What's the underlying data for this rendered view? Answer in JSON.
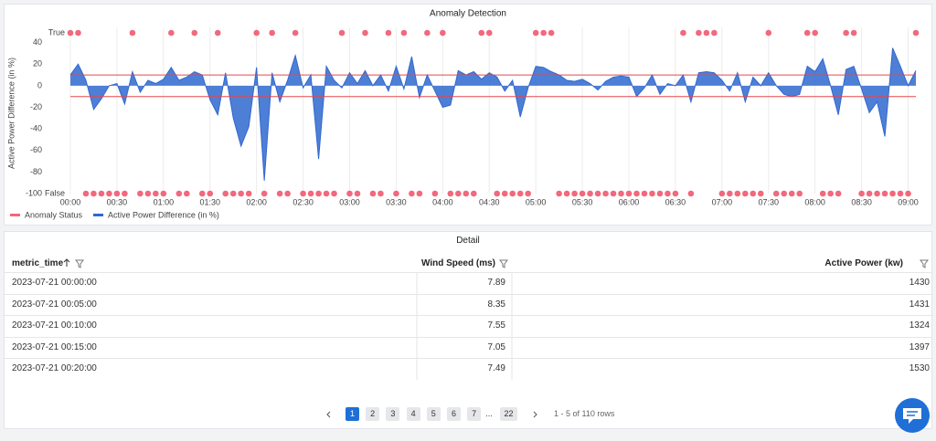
{
  "chart_data": {
    "type": "area",
    "title": "Anomaly Detection",
    "ylabel": "Active Power Difference (in %)",
    "x": [
      0,
      5,
      10,
      15,
      20,
      25,
      30,
      35,
      40,
      45,
      50,
      55,
      60,
      65,
      70,
      75,
      80,
      85,
      90,
      95,
      100,
      105,
      110,
      115,
      120,
      125,
      130,
      135,
      140,
      145,
      150,
      155,
      160,
      165,
      170,
      175,
      180,
      185,
      190,
      195,
      200,
      205,
      210,
      215,
      220,
      225,
      230,
      235,
      240,
      245,
      250,
      255,
      260,
      265,
      270,
      275,
      280,
      285,
      290,
      295,
      300,
      305,
      310,
      315,
      320,
      325,
      330,
      335,
      340,
      345,
      350,
      355,
      360,
      365,
      370,
      375,
      380,
      385,
      390,
      395,
      400,
      405,
      410,
      415,
      420,
      425,
      430,
      435,
      440,
      445,
      450,
      455,
      460,
      465,
      470,
      475,
      480,
      485,
      490,
      495,
      500,
      505,
      510,
      515,
      520,
      525,
      530,
      535,
      540,
      545
    ],
    "xlim": [
      0,
      545
    ],
    "xticks": [
      {
        "value": 0,
        "label": "00:00"
      },
      {
        "value": 30,
        "label": "00:30"
      },
      {
        "value": 60,
        "label": "01:00"
      },
      {
        "value": 90,
        "label": "01:30"
      },
      {
        "value": 120,
        "label": "02:00"
      },
      {
        "value": 150,
        "label": "02:30"
      },
      {
        "value": 180,
        "label": "03:00"
      },
      {
        "value": 210,
        "label": "03:30"
      },
      {
        "value": 240,
        "label": "04:00"
      },
      {
        "value": 270,
        "label": "04:30"
      },
      {
        "value": 300,
        "label": "05:00"
      },
      {
        "value": 330,
        "label": "05:30"
      },
      {
        "value": 360,
        "label": "06:00"
      },
      {
        "value": 390,
        "label": "06:30"
      },
      {
        "value": 420,
        "label": "07:00"
      },
      {
        "value": 450,
        "label": "07:30"
      },
      {
        "value": 480,
        "label": "08:00"
      },
      {
        "value": 510,
        "label": "08:30"
      },
      {
        "value": 540,
        "label": "09:00"
      }
    ],
    "ylim": [
      -100,
      49
    ],
    "yticks": [
      -100,
      -80,
      -60,
      -40,
      -20,
      0,
      20,
      40
    ],
    "y2lim": [
      0,
      1
    ],
    "y2ticks": [
      {
        "value": 0,
        "label": "False"
      },
      {
        "value": 1,
        "label": "True"
      }
    ],
    "grid": true,
    "thresholds": [
      10,
      -10
    ],
    "threshold_color": "#e5474f",
    "series": [
      {
        "name": "Anomaly Status",
        "type": "scatter",
        "axis": "y2",
        "color": "#f2687c",
        "values": [
          1,
          1,
          0,
          0,
          0,
          0,
          0,
          0,
          1,
          0,
          0,
          0,
          0,
          1,
          0,
          0,
          1,
          0,
          0,
          1,
          0,
          0,
          0,
          0,
          1,
          0,
          1,
          0,
          0,
          1,
          0,
          0,
          0,
          0,
          0,
          1,
          0,
          0,
          1,
          0,
          0,
          1,
          0,
          1,
          0,
          0,
          1,
          0,
          1,
          0,
          0,
          0,
          0,
          1,
          1,
          0,
          0,
          0,
          0,
          0,
          1,
          1,
          1,
          0,
          0,
          0,
          0,
          0,
          0,
          0,
          0,
          0,
          0,
          0,
          0,
          0,
          0,
          0,
          0,
          1,
          0,
          1,
          1,
          1,
          0,
          0,
          0,
          0,
          0,
          0,
          1,
          0,
          0,
          0,
          0,
          1,
          1,
          0,
          0,
          0,
          1,
          1,
          0,
          0,
          0,
          0,
          0,
          0,
          0,
          1
        ]
      },
      {
        "name": "Active Power Difference (in %)",
        "color": "#2f68cf",
        "values": [
          10,
          20,
          5,
          -22,
          -12,
          0,
          2,
          -17,
          13,
          -6,
          5,
          2,
          6,
          17,
          5,
          8,
          13,
          10,
          -13,
          -27,
          12,
          -30,
          -56,
          -38,
          17,
          -88,
          12,
          -15,
          5,
          28,
          -2,
          10,
          -68,
          18,
          5,
          -2,
          12,
          2,
          14,
          0,
          10,
          -5,
          18,
          -3,
          27,
          -11,
          10,
          -5,
          -20,
          -18,
          14,
          10,
          13,
          6,
          12,
          8,
          -5,
          5,
          -29,
          -2,
          18,
          17,
          13,
          10,
          5,
          4,
          6,
          2,
          -4,
          4,
          8,
          9,
          8,
          -10,
          -2,
          10,
          -8,
          2,
          0,
          10,
          -15,
          12,
          13,
          12,
          5,
          -5,
          12,
          -15,
          8,
          0,
          12,
          0,
          -8,
          -10,
          -8,
          18,
          13,
          25,
          0,
          -27,
          15,
          18,
          -3,
          -25,
          -15,
          -47,
          35,
          18,
          0,
          14
        ]
      }
    ]
  },
  "table": {
    "title": "Detail",
    "columns": [
      "metric_time",
      "Wind Speed (ms)",
      "Active Power (kw)"
    ],
    "rows": [
      [
        "2023-07-21 00:00:00",
        7.89,
        1430
      ],
      [
        "2023-07-21 00:05:00",
        8.35,
        1431
      ],
      [
        "2023-07-21 00:10:00",
        7.55,
        1324
      ],
      [
        "2023-07-21 00:15:00",
        7.05,
        1397
      ],
      [
        "2023-07-21 00:20:00",
        7.49,
        1530
      ]
    ]
  },
  "pagination": {
    "pages": [
      "1",
      "2",
      "3",
      "4",
      "5",
      "6",
      "7"
    ],
    "ellipsis": "...",
    "last": "22",
    "summary": "1 - 5 of 110 rows"
  }
}
